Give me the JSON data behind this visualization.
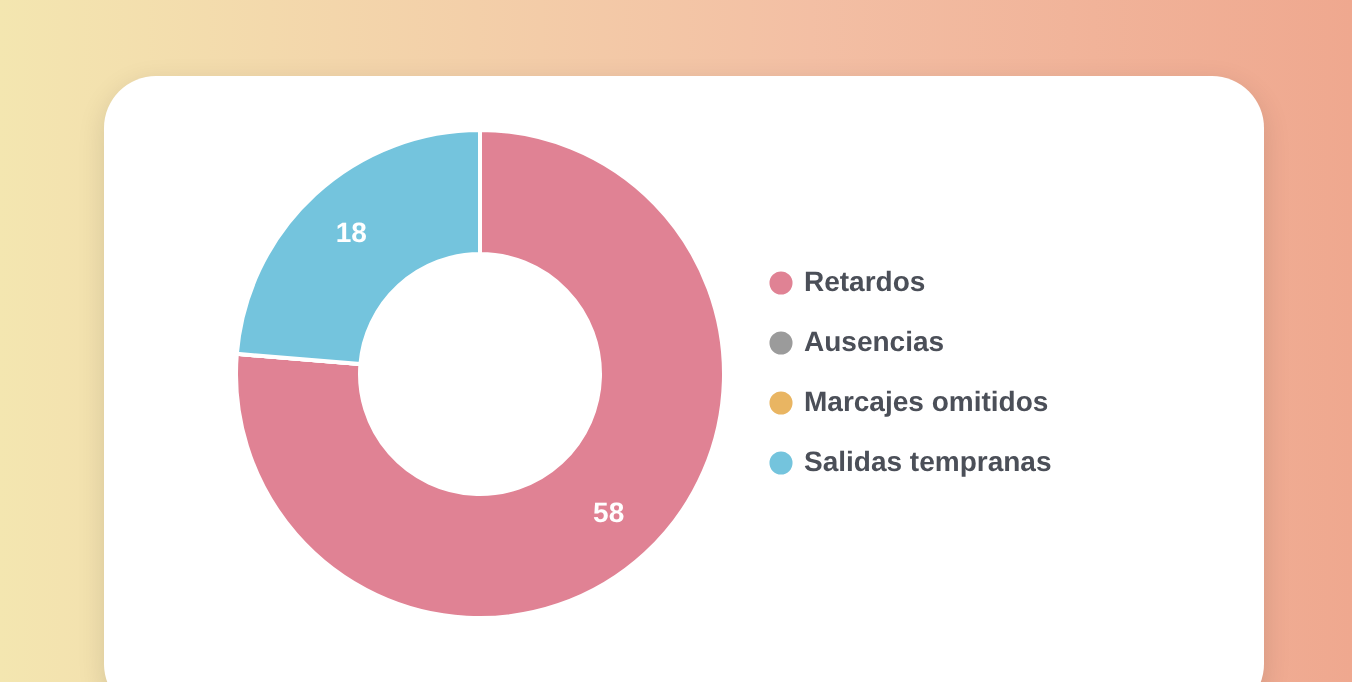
{
  "chart_data": {
    "type": "donut",
    "categories": [
      "Retardos",
      "Ausencias",
      "Marcajes omitidos",
      "Salidas tempranas"
    ],
    "values": [
      58,
      0,
      0,
      18
    ],
    "colors": [
      "#e08294",
      "#9b9b9b",
      "#e9b562",
      "#74c4dd"
    ],
    "value_labels": [
      "58",
      null,
      null,
      "18"
    ],
    "legend": "right"
  }
}
